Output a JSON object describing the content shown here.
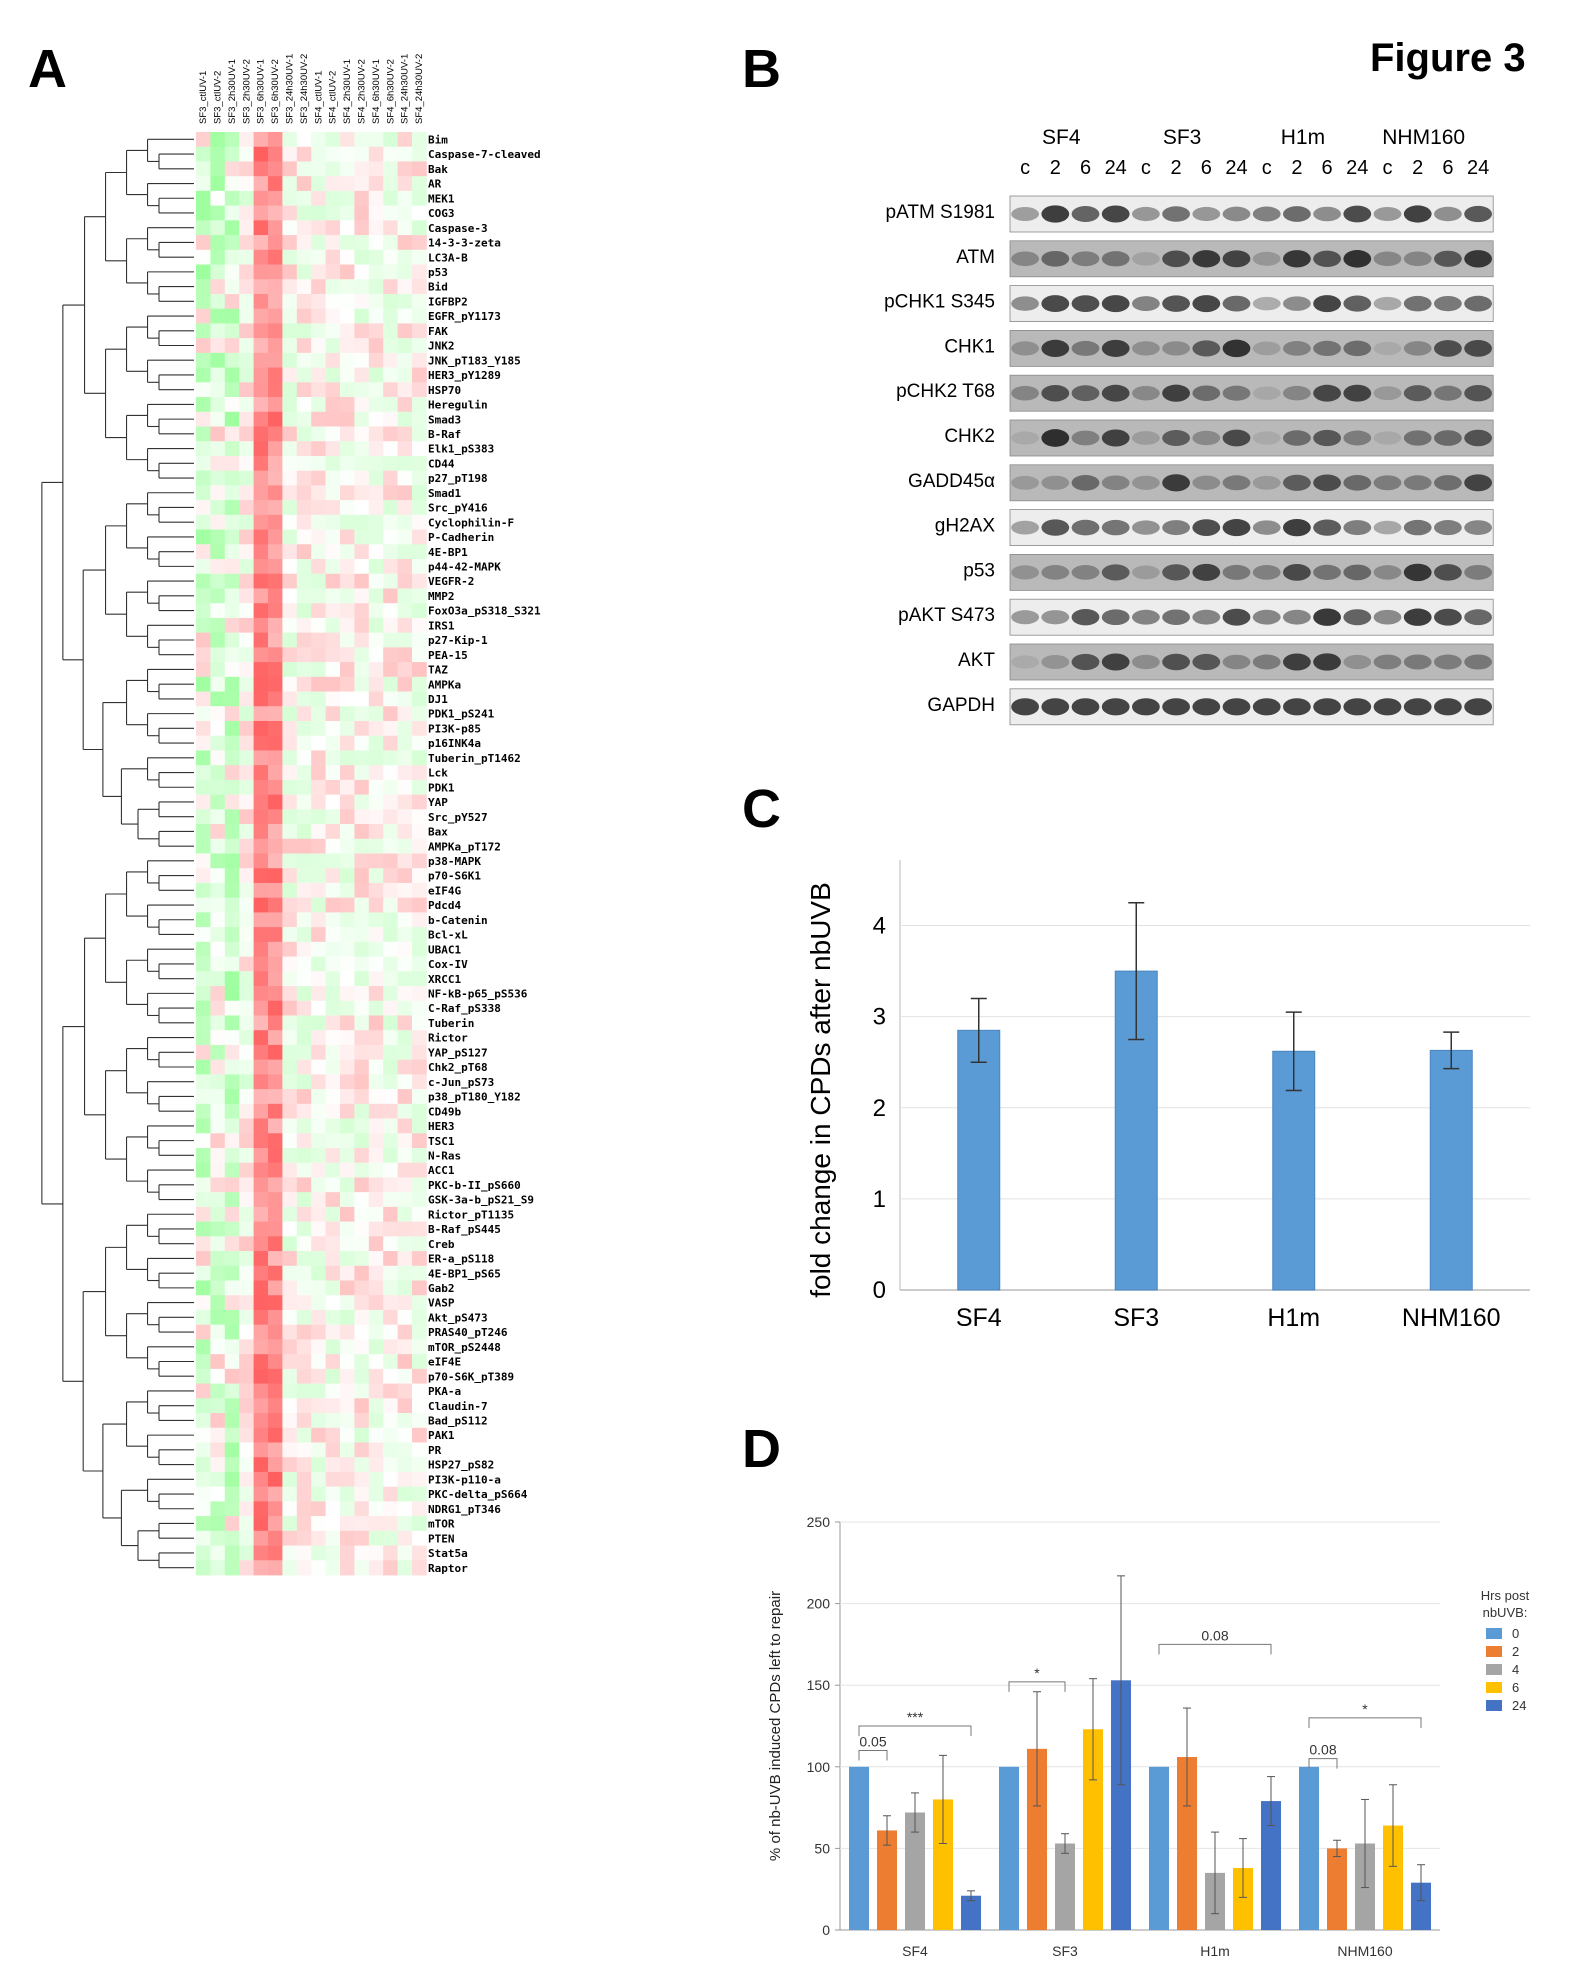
{
  "figure_title": "Figure 3",
  "panels": {
    "A": {
      "label": "A",
      "sample_labels": [
        "SF3_ctlUV-1",
        "SF3_ctlUV-2",
        "SF3_2h30UV-1",
        "SF3_2h30UV-2",
        "SF3_6h30UV-1",
        "SF3_6h30UV-2",
        "SF3_24h30UV-1",
        "SF3_24h30UV-2",
        "SF4_ctlUV-1",
        "SF4_ctlUV-2",
        "SF4_2h30UV-1",
        "SF4_2h30UV-2",
        "SF4_6h30UV-1",
        "SF4_6h30UV-2",
        "SF4_24h30UV-1",
        "SF4_24h30UV-2"
      ],
      "proteins": [
        "Bim",
        "Caspase-7-cleaved",
        "Bak",
        "AR",
        "MEK1",
        "COG3",
        "Caspase-3",
        "14-3-3-zeta",
        "LC3A-B",
        "p53",
        "Bid",
        "IGFBP2",
        "EGFR_pY1173",
        "FAK",
        "JNK2",
        "JNK_pT183_Y185",
        "HER3_pY1289",
        "HSP70",
        "Heregulin",
        "Smad3",
        "B-Raf",
        "Elk1_pS383",
        "CD44",
        "p27_pT198",
        "Smad1",
        "Src_pY416",
        "Cyclophilin-F",
        "P-Cadherin",
        "4E-BP1",
        "p44-42-MAPK",
        "VEGFR-2",
        "MMP2",
        "FoxO3a_pS318_S321",
        "IRS1",
        "p27-Kip-1",
        "PEA-15",
        "TAZ",
        "AMPKa",
        "DJ1",
        "PDK1_pS241",
        "PI3K-p85",
        "p16INK4a",
        "Tuberin_pT1462",
        "Lck",
        "PDK1",
        "YAP",
        "Src_pY527",
        "Bax",
        "AMPKa_pT172",
        "p38-MAPK",
        "p70-S6K1",
        "eIF4G",
        "Pdcd4",
        "b-Catenin",
        "Bcl-xL",
        "UBAC1",
        "Cox-IV",
        "XRCC1",
        "NF-kB-p65_pS536",
        "C-Raf_pS338",
        "Tuberin",
        "Rictor",
        "YAP_pS127",
        "Chk2_pT68",
        "c-Jun_pS73",
        "p38_pT180_Y182",
        "CD49b",
        "HER3",
        "TSC1",
        "N-Ras",
        "ACC1",
        "PKC-b-II_pS660",
        "GSK-3a-b_pS21_S9",
        "Rictor_pT1135",
        "B-Raf_pS445",
        "Creb",
        "ER-a_pS118",
        "4E-BP1_pS65",
        "Gab2",
        "VASP",
        "Akt_pS473",
        "PRAS40_pT246",
        "mTOR_pS2448",
        "eIF4E",
        "p70-S6K_pT389",
        "PKA-a",
        "Claudin-7",
        "Bad_pS112",
        "PAK1",
        "PR",
        "HSP27_pS82",
        "PI3K-p110-a",
        "PKC-delta_pS664",
        "NDRG1_pT346",
        "mTOR",
        "PTEN",
        "Stat5a",
        "Raptor"
      ]
    },
    "B": {
      "label": "B",
      "cell_lines": [
        "SF4",
        "SF3",
        "H1m",
        "NHM160"
      ],
      "timepoints": [
        "c",
        "2",
        "6",
        "24"
      ],
      "blots": [
        "pATM S1981",
        "ATM",
        "pCHK1 S345",
        "CHK1",
        "pCHK2 T68",
        "CHK2",
        "GADD45α",
        "gH2AX",
        "p53",
        "pAKT S473",
        "AKT",
        "GAPDH"
      ]
    },
    "C": {
      "label": "C",
      "chart_data": {
        "type": "bar",
        "categories": [
          "SF4",
          "SF3",
          "H1m",
          "NHM160"
        ],
        "values": [
          2.85,
          3.5,
          2.62,
          2.63
        ],
        "errors": [
          0.35,
          0.75,
          0.43,
          0.2
        ],
        "title": "",
        "xlabel": "",
        "ylabel": "fold change in CPDs after nbUVB",
        "ylim": [
          0,
          4.5
        ],
        "yticks": [
          0,
          1,
          2,
          3,
          4
        ],
        "grid": true,
        "color": "#5b9bd5"
      }
    },
    "D": {
      "label": "D",
      "chart_data": {
        "type": "bar",
        "categories": [
          "SF4",
          "SF3",
          "H1m",
          "NHM160"
        ],
        "series": [
          {
            "name": "0",
            "color": "#5b9bd5",
            "values": [
              100,
              100,
              100,
              100
            ],
            "errors": [
              0,
              0,
              0,
              0
            ]
          },
          {
            "name": "2",
            "color": "#ed7d31",
            "values": [
              61,
              111,
              106,
              50
            ],
            "errors": [
              9,
              35,
              30,
              5
            ]
          },
          {
            "name": "4",
            "color": "#a5a5a5",
            "values": [
              72,
              53,
              35,
              53
            ],
            "errors": [
              12,
              6,
              25,
              27
            ]
          },
          {
            "name": "6",
            "color": "#ffc000",
            "values": [
              80,
              123,
              38,
              64
            ],
            "errors": [
              27,
              31,
              18,
              25
            ]
          },
          {
            "name": "24",
            "color": "#4472c4",
            "values": [
              21,
              153,
              79,
              29
            ],
            "errors": [
              3,
              64,
              15,
              11
            ]
          }
        ],
        "ylabel": "% of nb-UVB induced CPDs left to repair",
        "ylim": [
          0,
          250
        ],
        "yticks": [
          0,
          50,
          100,
          150,
          200,
          250
        ],
        "legend_title": "Hrs post nbUVB:",
        "legend_position": "right",
        "grid": true,
        "annotations": [
          {
            "group": "SF4",
            "text": "0.05"
          },
          {
            "group": "SF4",
            "text": "***"
          },
          {
            "group": "SF3",
            "text": "*"
          },
          {
            "group": "H1m",
            "text": "0.08"
          },
          {
            "group": "NHM160",
            "text": "0.08"
          },
          {
            "group": "NHM160",
            "text": "*"
          }
        ]
      }
    }
  }
}
